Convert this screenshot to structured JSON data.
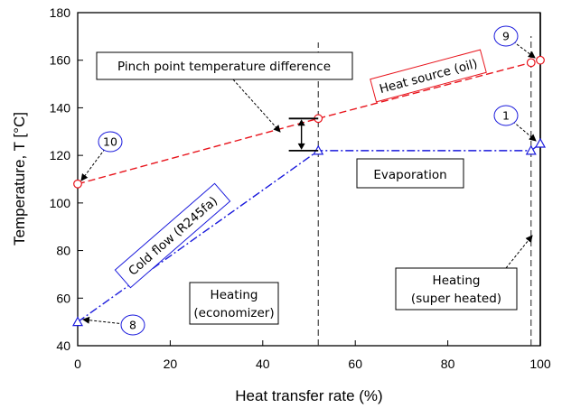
{
  "chart_data": {
    "type": "line",
    "xlabel": "Heat transfer rate (%)",
    "ylabel": "Temperature, T [°C]",
    "xlim": [
      0,
      100
    ],
    "ylim": [
      40,
      180
    ],
    "xticks": [
      0,
      20,
      40,
      60,
      80,
      100
    ],
    "yticks": [
      40,
      60,
      80,
      100,
      120,
      140,
      160,
      180
    ],
    "grid": false,
    "series": [
      {
        "key": "heat_source",
        "color": "#e8141c",
        "marker": "circle",
        "x": [
          0,
          52,
          98,
          100
        ],
        "y": [
          108,
          135.5,
          159,
          160
        ]
      },
      {
        "key": "cold_flow",
        "color": "#1a1adc",
        "marker": "triangle",
        "x": [
          0,
          52,
          98,
          100
        ],
        "y": [
          50,
          122,
          122,
          125
        ]
      }
    ],
    "vlines": [
      52,
      98
    ],
    "annotations": {
      "pinch_label": "Pinch point temperature difference",
      "heat_source_label": "Heat source (oil)",
      "cold_flow_label": "Cold flow (R245fa)",
      "evaporation": "Evaporation",
      "heating_economizer": [
        "Heating",
        "(economizer)"
      ],
      "heating_super": [
        "Heating",
        "(super heated)"
      ],
      "state_points": [
        "10",
        "9",
        "1",
        "8"
      ]
    },
    "pinch_bracket": {
      "x": 47,
      "y_low": 122,
      "y_high": 135.5
    }
  }
}
